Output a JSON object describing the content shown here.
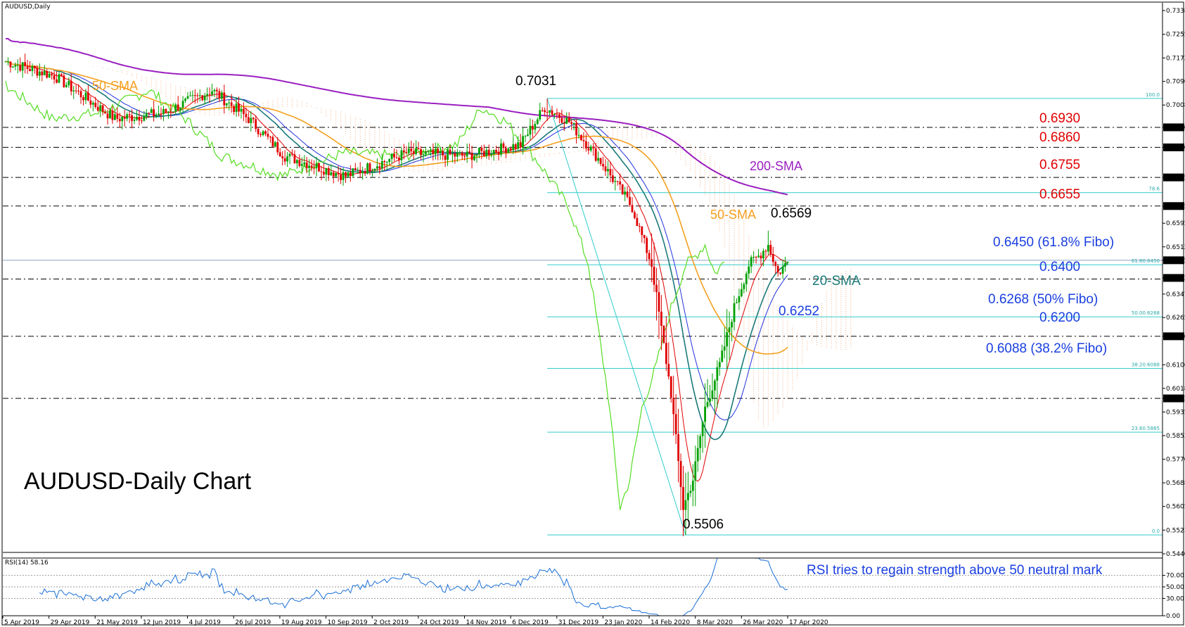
{
  "chart_data": [
    {
      "type": "candlestick",
      "symbol_label": "AUDUSD,Daily",
      "title": "AUDUSD-Daily Chart",
      "ylim": [
        0.5445,
        0.7365
      ],
      "y_ticks": [
        "0.73380",
        "0.72550",
        "0.71725",
        "0.70905",
        "0.70080",
        "0.69300",
        "0.68600",
        "0.67550",
        "0.66550",
        "0.65950",
        "0.65125",
        "0.64656",
        "0.64039",
        "0.63475",
        "0.62655",
        "0.62000",
        "0.61005",
        "0.60180",
        "0.59831",
        "0.59355",
        "0.58530",
        "0.57705",
        "0.56880",
        "0.56055",
        "0.55230",
        "0.54400"
      ],
      "highlighted_ticks": [
        "0.69300",
        "0.68600",
        "0.67550",
        "0.66550",
        "0.64656",
        "0.64039",
        "0.62000",
        "0.59831"
      ],
      "x_ticks": [
        "5 Apr 2019",
        "29 Apr 2019",
        "21 May 2019",
        "12 Jun 2019",
        "4 Jul 2019",
        "26 Jul 2019",
        "19 Aug 2019",
        "10 Sep 2019",
        "2 Oct 2019",
        "24 Oct 2019",
        "14 Nov 2019",
        "6 Dec 2019",
        "31 Dec 2019",
        "23 Jan 2020",
        "14 Feb 2020",
        "8 Mar 2020",
        "26 Mar 2020",
        "17 Apr 2020"
      ],
      "horizontal_levels": [
        {
          "value": 0.693,
          "label": "0.6930",
          "color": "#e00000"
        },
        {
          "value": 0.686,
          "label": "0.6860",
          "color": "#e00000"
        },
        {
          "value": 0.6755,
          "label": "0.6755",
          "color": "#e00000"
        },
        {
          "value": 0.6655,
          "label": "0.6655",
          "color": "#e00000"
        },
        {
          "value": 0.64,
          "label": "0.6400",
          "color": "#1a3fe0"
        },
        {
          "value": 0.62,
          "label": "0.6200",
          "color": "#1a3fe0"
        },
        {
          "value": 0.5983,
          "label": "",
          "color": "#000000"
        }
      ],
      "fibonacci": [
        {
          "value": 0.7031,
          "label": "100.0"
        },
        {
          "value": 0.6702,
          "label": "78.6"
        },
        {
          "value": 0.645,
          "label": "61.80.6450",
          "annotation": "0.6450 (61.8% Fibo)"
        },
        {
          "value": 0.6268,
          "label": "50.00.6268",
          "annotation": "0.6268 (50% Fibo)"
        },
        {
          "value": 0.6088,
          "label": "38.20.6088",
          "annotation": "0.6088 (38.2% Fibo)"
        },
        {
          "value": 0.5865,
          "label": "23.60.5865"
        },
        {
          "value": 0.5506,
          "label": "0.0"
        }
      ],
      "price_annotations": [
        {
          "text": "0.7031",
          "value": 0.7031
        },
        {
          "text": "0.6569",
          "value": 0.6569
        },
        {
          "text": "0.6252",
          "value": 0.6252
        },
        {
          "text": "0.5506",
          "value": 0.5506
        }
      ],
      "indicator_labels": [
        {
          "text": "50-SMA",
          "color": "#f5a020"
        },
        {
          "text": "200-SMA",
          "color": "#9a1fc0"
        },
        {
          "text": "50-SMA",
          "color": "#f5a020"
        },
        {
          "text": "20-SMA",
          "color": "#1b7a7a"
        }
      ],
      "colors": {
        "bull": "#00a000",
        "bear": "#e00000",
        "sma20": "#1b7a7a",
        "sma50": "#f5a020",
        "sma200": "#9a1fc0",
        "chikou": "#55dd22",
        "tenkan": "#e00000",
        "kijun": "#2233dd",
        "fib": "#33cccc",
        "cloud": "#f0a070"
      }
    },
    {
      "type": "line",
      "label": "RSI(14) 58.16",
      "note": "RSI tries to regain strength above 50 neutral mark",
      "ylim": [
        0,
        100
      ],
      "y_ticks": [
        "70.00",
        "50.00",
        "30.00",
        "0.00"
      ],
      "levels": [
        70,
        50,
        30
      ],
      "color": "#1a6fd8"
    }
  ]
}
